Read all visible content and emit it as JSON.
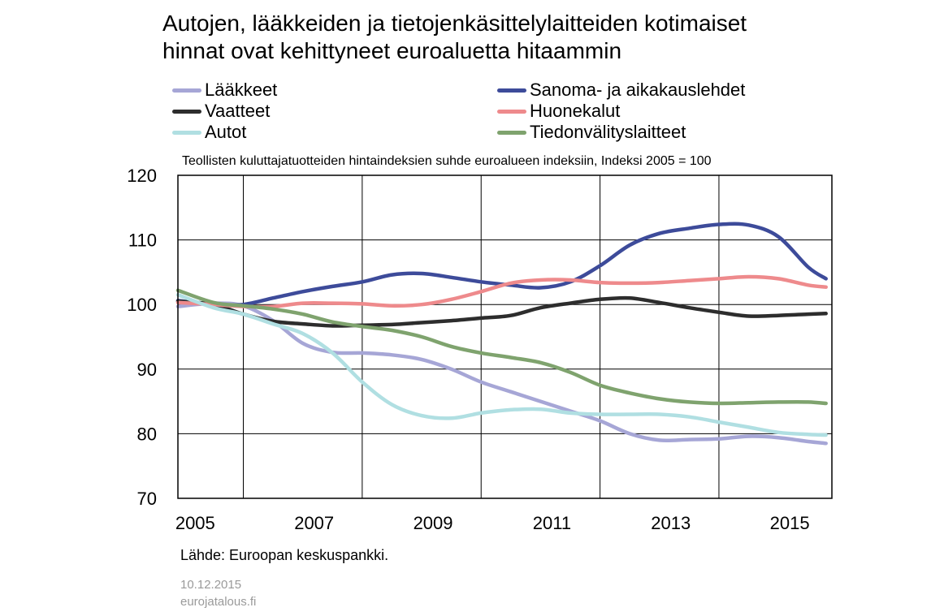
{
  "title_line1": "Autojen, lääkkeiden ja tietojenkäsittelylaitteiden kotimaiset",
  "title_line2": "hinnat ovat kehittyneet euroaluetta hitaammin",
  "subtitle": "Teollisten kuluttajatuotteiden hintaindeksien suhde euroalueen indeksiin, Indeksi 2005 = 100",
  "source": "Lähde: Euroopan keskuspankki.",
  "date": "10.12.2015",
  "site": "eurojatalous.fi",
  "chart_data": {
    "type": "line",
    "xlim": [
      2004.9,
      2015.9
    ],
    "ylim": [
      70,
      120
    ],
    "x_ticks": [
      2005,
      2007,
      2009,
      2011,
      2013,
      2015
    ],
    "y_ticks": [
      70,
      80,
      90,
      100,
      110,
      120
    ],
    "grid": true,
    "legend_position": "top",
    "series": [
      {
        "name": "Lääkkeet",
        "color": "#a6a6d6",
        "points": [
          [
            2004.9,
            99.7
          ],
          [
            2005.5,
            100.2
          ],
          [
            2006.0,
            99.8
          ],
          [
            2006.5,
            97.5
          ],
          [
            2007.0,
            94.0
          ],
          [
            2007.5,
            92.6
          ],
          [
            2008.0,
            92.5
          ],
          [
            2008.5,
            92.2
          ],
          [
            2009.0,
            91.5
          ],
          [
            2009.5,
            90.0
          ],
          [
            2010.0,
            88.0
          ],
          [
            2010.5,
            86.5
          ],
          [
            2011.0,
            85.0
          ],
          [
            2011.5,
            83.5
          ],
          [
            2012.0,
            82.0
          ],
          [
            2012.5,
            80.0
          ],
          [
            2013.0,
            79.0
          ],
          [
            2013.5,
            79.1
          ],
          [
            2014.0,
            79.2
          ],
          [
            2014.5,
            79.6
          ],
          [
            2015.0,
            79.4
          ],
          [
            2015.5,
            78.8
          ],
          [
            2015.8,
            78.5
          ]
        ]
      },
      {
        "name": "Sanoma- ja aikakauslehdet",
        "color": "#3d4b9a",
        "points": [
          [
            2004.9,
            100.6
          ],
          [
            2005.5,
            100.0
          ],
          [
            2006.0,
            100.0
          ],
          [
            2006.5,
            101.0
          ],
          [
            2007.0,
            102.0
          ],
          [
            2007.5,
            102.8
          ],
          [
            2008.0,
            103.5
          ],
          [
            2008.5,
            104.6
          ],
          [
            2009.0,
            104.8
          ],
          [
            2009.5,
            104.2
          ],
          [
            2010.0,
            103.5
          ],
          [
            2010.5,
            103.0
          ],
          [
            2011.0,
            102.6
          ],
          [
            2011.5,
            103.5
          ],
          [
            2012.0,
            106.0
          ],
          [
            2012.5,
            109.2
          ],
          [
            2013.0,
            111.0
          ],
          [
            2013.5,
            111.8
          ],
          [
            2014.0,
            112.4
          ],
          [
            2014.5,
            112.3
          ],
          [
            2015.0,
            110.5
          ],
          [
            2015.5,
            105.8
          ],
          [
            2015.8,
            104.0
          ]
        ]
      },
      {
        "name": "Vaatteet",
        "color": "#2d2d2d",
        "points": [
          [
            2004.9,
            100.5
          ],
          [
            2005.5,
            100.0
          ],
          [
            2006.0,
            98.5
          ],
          [
            2006.5,
            97.4
          ],
          [
            2007.0,
            97.0
          ],
          [
            2007.5,
            96.7
          ],
          [
            2008.0,
            96.8
          ],
          [
            2008.5,
            96.9
          ],
          [
            2009.0,
            97.2
          ],
          [
            2009.5,
            97.5
          ],
          [
            2010.0,
            97.9
          ],
          [
            2010.5,
            98.3
          ],
          [
            2011.0,
            99.5
          ],
          [
            2011.5,
            100.2
          ],
          [
            2012.0,
            100.8
          ],
          [
            2012.5,
            101.0
          ],
          [
            2013.0,
            100.3
          ],
          [
            2013.5,
            99.5
          ],
          [
            2014.0,
            98.8
          ],
          [
            2014.5,
            98.2
          ],
          [
            2015.0,
            98.3
          ],
          [
            2015.5,
            98.5
          ],
          [
            2015.8,
            98.6
          ]
        ]
      },
      {
        "name": "Huonekalut",
        "color": "#ee8a8c",
        "points": [
          [
            2004.9,
            100.3
          ],
          [
            2005.5,
            100.0
          ],
          [
            2006.0,
            99.7
          ],
          [
            2006.5,
            99.7
          ],
          [
            2007.0,
            100.2
          ],
          [
            2007.5,
            100.2
          ],
          [
            2008.0,
            100.1
          ],
          [
            2008.5,
            99.8
          ],
          [
            2009.0,
            100.0
          ],
          [
            2009.5,
            100.8
          ],
          [
            2010.0,
            102.0
          ],
          [
            2010.5,
            103.3
          ],
          [
            2011.0,
            103.8
          ],
          [
            2011.5,
            103.8
          ],
          [
            2012.0,
            103.4
          ],
          [
            2012.5,
            103.3
          ],
          [
            2013.0,
            103.4
          ],
          [
            2013.5,
            103.7
          ],
          [
            2014.0,
            104.0
          ],
          [
            2014.5,
            104.3
          ],
          [
            2015.0,
            104.0
          ],
          [
            2015.5,
            103.0
          ],
          [
            2015.8,
            102.7
          ]
        ]
      },
      {
        "name": "Autot",
        "color": "#b0dfe2",
        "points": [
          [
            2004.9,
            101.5
          ],
          [
            2005.5,
            99.5
          ],
          [
            2006.0,
            98.5
          ],
          [
            2006.5,
            97.0
          ],
          [
            2007.0,
            95.5
          ],
          [
            2007.5,
            92.5
          ],
          [
            2008.0,
            88.0
          ],
          [
            2008.5,
            84.5
          ],
          [
            2009.0,
            82.8
          ],
          [
            2009.5,
            82.4
          ],
          [
            2010.0,
            83.2
          ],
          [
            2010.5,
            83.7
          ],
          [
            2011.0,
            83.8
          ],
          [
            2011.5,
            83.2
          ],
          [
            2012.0,
            83.0
          ],
          [
            2012.5,
            83.0
          ],
          [
            2013.0,
            83.0
          ],
          [
            2013.5,
            82.6
          ],
          [
            2014.0,
            81.8
          ],
          [
            2014.5,
            81.0
          ],
          [
            2015.0,
            80.2
          ],
          [
            2015.5,
            79.9
          ],
          [
            2015.8,
            79.8
          ]
        ]
      },
      {
        "name": "Tiedonvälityslaitteet",
        "color": "#7fa36e",
        "points": [
          [
            2004.9,
            102.2
          ],
          [
            2005.5,
            100.3
          ],
          [
            2006.0,
            99.8
          ],
          [
            2006.5,
            99.3
          ],
          [
            2007.0,
            98.5
          ],
          [
            2007.5,
            97.3
          ],
          [
            2008.0,
            96.6
          ],
          [
            2008.5,
            96.0
          ],
          [
            2009.0,
            95.0
          ],
          [
            2009.5,
            93.5
          ],
          [
            2010.0,
            92.5
          ],
          [
            2010.5,
            91.8
          ],
          [
            2011.0,
            91.0
          ],
          [
            2011.5,
            89.5
          ],
          [
            2012.0,
            87.5
          ],
          [
            2012.5,
            86.3
          ],
          [
            2013.0,
            85.4
          ],
          [
            2013.5,
            84.9
          ],
          [
            2014.0,
            84.7
          ],
          [
            2014.5,
            84.8
          ],
          [
            2015.0,
            84.9
          ],
          [
            2015.5,
            84.9
          ],
          [
            2015.8,
            84.7
          ]
        ]
      }
    ]
  }
}
